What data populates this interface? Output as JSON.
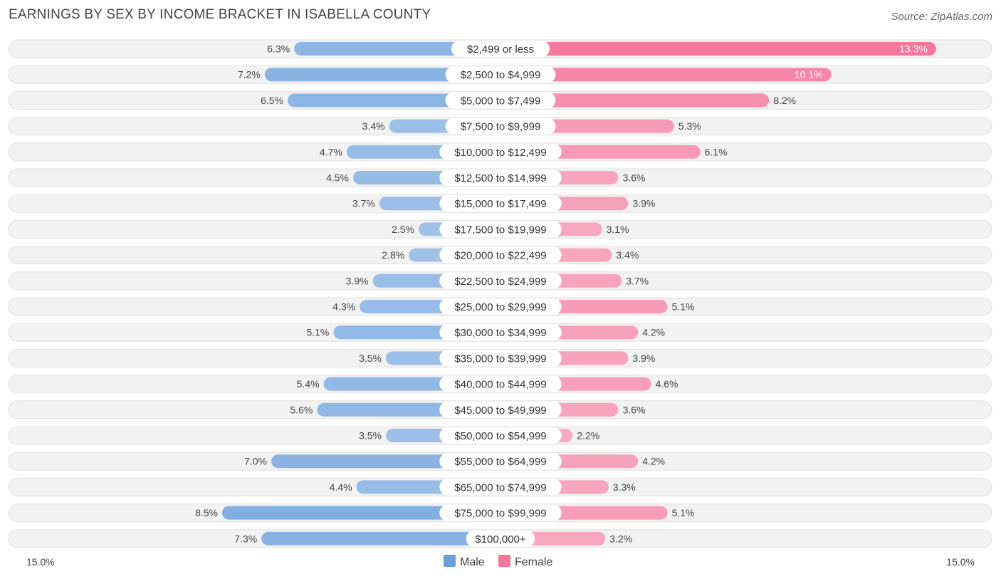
{
  "chart_data": {
    "type": "bar",
    "orientation": "horizontal-diverging",
    "title": "EARNINGS BY SEX BY INCOME BRACKET IN ISABELLA COUNTY",
    "source": "Source: ZipAtlas.com",
    "categories": [
      "$2,499 or less",
      "$2,500 to $4,999",
      "$5,000 to $7,499",
      "$7,500 to $9,999",
      "$10,000 to $12,499",
      "$12,500 to $14,999",
      "$15,000 to $17,499",
      "$17,500 to $19,999",
      "$20,000 to $22,499",
      "$22,500 to $24,999",
      "$25,000 to $29,999",
      "$30,000 to $34,999",
      "$35,000 to $39,999",
      "$40,000 to $44,999",
      "$45,000 to $49,999",
      "$50,000 to $54,999",
      "$55,000 to $64,999",
      "$65,000 to $74,999",
      "$75,000 to $99,999",
      "$100,000+"
    ],
    "series": [
      {
        "name": "Male",
        "color": "#6a9fdc",
        "values": [
          6.3,
          7.2,
          6.5,
          3.4,
          4.7,
          4.5,
          3.7,
          2.5,
          2.8,
          3.9,
          4.3,
          5.1,
          3.5,
          5.4,
          5.6,
          3.5,
          7.0,
          4.4,
          8.5,
          7.3
        ],
        "labels": [
          "6.3%",
          "7.2%",
          "6.5%",
          "3.4%",
          "4.7%",
          "4.5%",
          "3.7%",
          "2.5%",
          "2.8%",
          "3.9%",
          "4.3%",
          "5.1%",
          "3.5%",
          "5.4%",
          "5.6%",
          "3.5%",
          "7.0%",
          "4.4%",
          "8.5%",
          "7.3%"
        ]
      },
      {
        "name": "Female",
        "color": "#f4779e",
        "values": [
          13.3,
          10.1,
          8.2,
          5.3,
          6.1,
          3.6,
          3.9,
          3.1,
          3.4,
          3.7,
          5.1,
          4.2,
          3.9,
          4.6,
          3.6,
          2.2,
          4.2,
          3.3,
          5.1,
          3.2
        ],
        "labels": [
          "13.3%",
          "10.1%",
          "8.2%",
          "5.3%",
          "6.1%",
          "3.6%",
          "3.9%",
          "3.1%",
          "3.4%",
          "3.7%",
          "5.1%",
          "4.2%",
          "3.9%",
          "4.6%",
          "3.6%",
          "2.2%",
          "4.2%",
          "3.3%",
          "5.1%",
          "3.2%"
        ]
      }
    ],
    "axis": {
      "max": 15.0,
      "left_label": "15.0%",
      "right_label": "15.0%"
    },
    "legend": {
      "position": "bottom-center"
    }
  }
}
